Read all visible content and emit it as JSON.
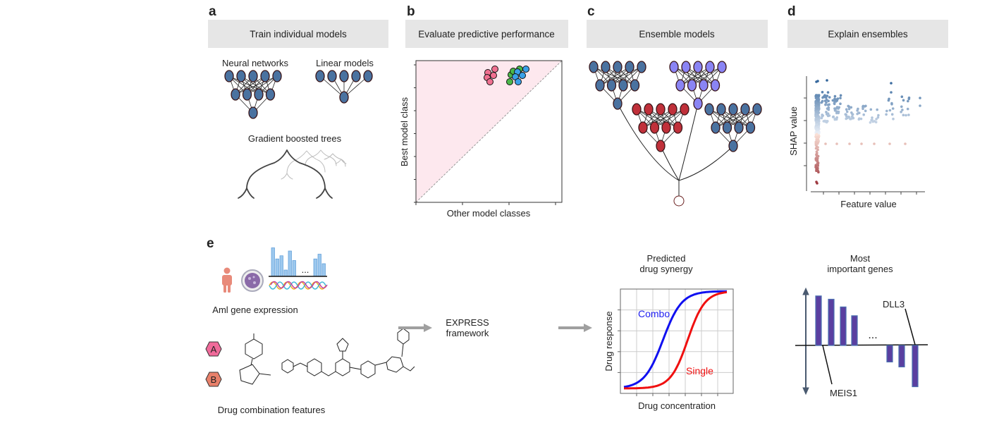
{
  "panels": {
    "a": {
      "letter": "a",
      "title": "Train individual models",
      "nn_label": "Neural networks",
      "linear_label": "Linear models",
      "gbt_label": "Gradient boosted trees"
    },
    "b": {
      "letter": "b",
      "title": "Evaluate predictive performance",
      "ylabel": "Best model class",
      "xlabel": "Other model classes"
    },
    "c": {
      "letter": "c",
      "title": "Ensemble models"
    },
    "d": {
      "letter": "d",
      "title": "Explain ensembles",
      "ylabel": "SHAP value",
      "xlabel": "Feature value"
    },
    "e": {
      "letter": "e",
      "gene_expression_label": "Aml gene expression",
      "drug_features_label": "Drug combination features",
      "drug_a": "A",
      "drug_b": "B",
      "ellipsis": "...",
      "framework_line1": "EXPRESS",
      "framework_line2": "framework",
      "synergy_title_line1": "Predicted",
      "synergy_title_line2": "drug synergy",
      "synergy_ylabel": "Drug response",
      "synergy_xlabel": "Drug concentration",
      "combo_label": "Combo",
      "single_label": "Single",
      "genes_title_line1": "Most",
      "genes_title_line2": "important genes",
      "gene_label_top": "DLL3",
      "gene_label_bottom": "MEIS1",
      "gene_importance": [
        0.9,
        0.84,
        0.7,
        0.54,
        -0.3,
        -0.39,
        -0.75
      ],
      "expression_bars": [
        0.9,
        0.55,
        0.65,
        0.2,
        0.8,
        0.5,
        0.55,
        0.7,
        0.4
      ]
    }
  },
  "colors": {
    "header_bg": "#e6e6e6",
    "nn_blue": "#4a72a0",
    "nn_purple": "#8a84f4",
    "nn_red": "#c0303a",
    "pink_region": "#fde8ee",
    "pink_point": "#f07090",
    "green_point": "#4cb84a",
    "blue_point": "#3aa0e8",
    "combo": "#1010f0",
    "single": "#f01010",
    "gene_bar": "#5a3fa0",
    "arrow_gray": "#a0a0a0"
  }
}
